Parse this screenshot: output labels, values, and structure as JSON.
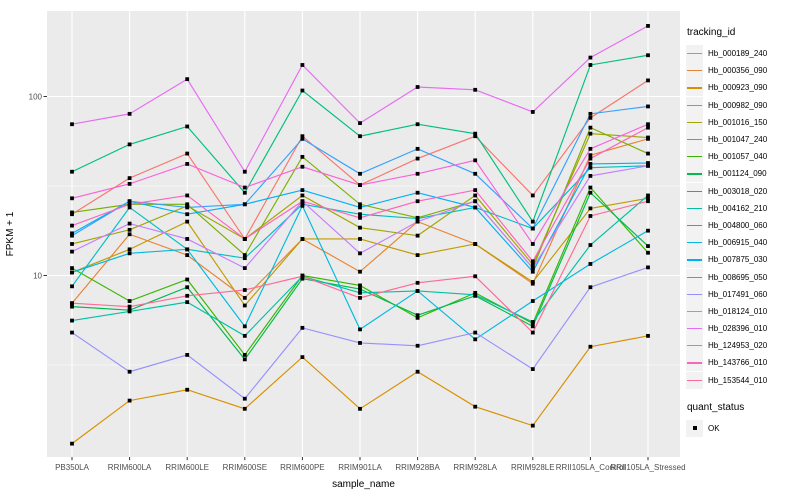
{
  "chart_data": {
    "type": "line",
    "title": "",
    "xlabel": "sample_name",
    "ylabel": "FPKM + 1",
    "x_categories": [
      "PB350LA",
      "RRIM600LA",
      "RRIM600LE",
      "RRIM600SE",
      "RRIM600PE",
      "RRIM901LA",
      "RRIM928BA",
      "RRIM928LA",
      "RRIM928LE",
      "RRII105LA_Control",
      "RRII105LA_Stressed"
    ],
    "y_scale": "log10",
    "y_ticks": [
      100,
      10
    ],
    "y_tick_labels": [
      "100",
      "10"
    ],
    "y_minor_ticks": [
      31.62,
      3.162
    ],
    "ylim": [
      0.97,
      300
    ],
    "grid": true,
    "legend_position": "right",
    "series": [
      {
        "name": "Hb_000189_240",
        "color": "#F8766D",
        "values": [
          22,
          35,
          48,
          16,
          60,
          32,
          45,
          60,
          28,
          76,
          123
        ]
      },
      {
        "name": "Hb_000356_090",
        "color": "#EA8331",
        "values": [
          7,
          17,
          13,
          7.5,
          16,
          10.5,
          20,
          15,
          9,
          47,
          58
        ]
      },
      {
        "name": "Hb_000923_090",
        "color": "#D89000",
        "values": [
          1.15,
          2.0,
          2.3,
          1.8,
          3.5,
          1.8,
          2.9,
          1.85,
          1.45,
          4.0,
          4.6
        ]
      },
      {
        "name": "Hb_000982_090",
        "color": "#C09B00",
        "values": [
          10.4,
          14,
          20,
          6.8,
          16,
          16,
          13,
          15,
          9.2,
          23.7,
          27
        ]
      },
      {
        "name": "Hb_001016_150",
        "color": "#A3A500",
        "values": [
          15,
          18,
          24.5,
          16,
          28,
          18.5,
          16.7,
          28,
          11.5,
          62,
          59
        ]
      },
      {
        "name": "Hb_001047_240",
        "color": "#7CAE00",
        "values": [
          22.5,
          25,
          25,
          13,
          46,
          25,
          21,
          26,
          11,
          67,
          48
        ]
      },
      {
        "name": "Hb_001057_040",
        "color": "#39B600",
        "values": [
          11,
          7.2,
          9.5,
          3.6,
          10,
          8.8,
          5.8,
          8,
          5.4,
          31,
          13.4
        ]
      },
      {
        "name": "Hb_001124_090",
        "color": "#00BB4E",
        "values": [
          6.7,
          6.4,
          8.6,
          3.4,
          9.6,
          8.4,
          6,
          7.7,
          5.2,
          29,
          14.6
        ]
      },
      {
        "name": "Hb_003018_020",
        "color": "#00BF7D",
        "values": [
          38,
          54,
          68,
          29,
          108,
          60,
          70,
          62,
          20,
          150,
          170
        ]
      },
      {
        "name": "Hb_004162_210",
        "color": "#00C1A3",
        "values": [
          5.6,
          6.3,
          7.1,
          4.6,
          9.9,
          8,
          8.2,
          7.8,
          5.5,
          14.8,
          28
        ]
      },
      {
        "name": "Hb_004800_060",
        "color": "#00BFC4",
        "values": [
          8.7,
          24,
          14,
          12.5,
          25,
          22,
          20.8,
          24,
          18.3,
          40,
          41
        ]
      },
      {
        "name": "Hb_006915_040",
        "color": "#00BAE0",
        "values": [
          10.4,
          13.3,
          14,
          5.2,
          24.5,
          5,
          8.2,
          4.4,
          7.2,
          11.6,
          17.8
        ]
      },
      {
        "name": "Hb_007875_030",
        "color": "#00B0F6",
        "values": [
          17.2,
          26,
          22,
          25,
          30,
          24,
          29,
          24,
          10.5,
          42,
          42.5
        ]
      },
      {
        "name": "Hb_008695_050",
        "color": "#35A2FF",
        "values": [
          16.7,
          26,
          24,
          25,
          58,
          37,
          51,
          37,
          18.3,
          80,
          88
        ]
      },
      {
        "name": "Hb_017491_060",
        "color": "#9590FF",
        "values": [
          4.8,
          2.9,
          3.6,
          2.05,
          5.1,
          4.2,
          4.05,
          4.8,
          3,
          8.6,
          11.1
        ]
      },
      {
        "name": "Hb_018124_010",
        "color": "#C77CFF",
        "values": [
          13.6,
          19.5,
          16,
          11,
          26,
          13.3,
          20,
          26,
          11,
          36,
          41
        ]
      },
      {
        "name": "Hb_028396_010",
        "color": "#E76BF3",
        "values": [
          70,
          80,
          125,
          38,
          150,
          71,
          113,
          109,
          82,
          165,
          248
        ]
      },
      {
        "name": "Hb_124953_020",
        "color": "#FA62DB",
        "values": [
          27,
          32.5,
          42,
          31,
          40.5,
          32,
          37,
          44,
          15,
          51,
          70
        ]
      },
      {
        "name": "Hb_143766_010",
        "color": "#FF62BC",
        "values": [
          19,
          25,
          28,
          16,
          26,
          21,
          26,
          30,
          12,
          45,
          67
        ]
      },
      {
        "name": "Hb_153544_010",
        "color": "#FF6A98",
        "values": [
          7,
          6.7,
          7.7,
          8.3,
          9.9,
          7.5,
          9.1,
          9.9,
          4.8,
          21.5,
          26
        ]
      }
    ],
    "legend": {
      "tracking_title": "tracking_id",
      "quant_title": "quant_status",
      "quant_items": [
        {
          "label": "OK",
          "marker": "black-square"
        }
      ]
    },
    "style": {
      "panel_bg": "#EBEBEB",
      "grid_color": "#FFFFFF",
      "tick_color": "#333333",
      "tick_label_color": "#4D4D4D",
      "marker_color": "#000000",
      "legend_key_bg": "#F2F2F2"
    }
  }
}
